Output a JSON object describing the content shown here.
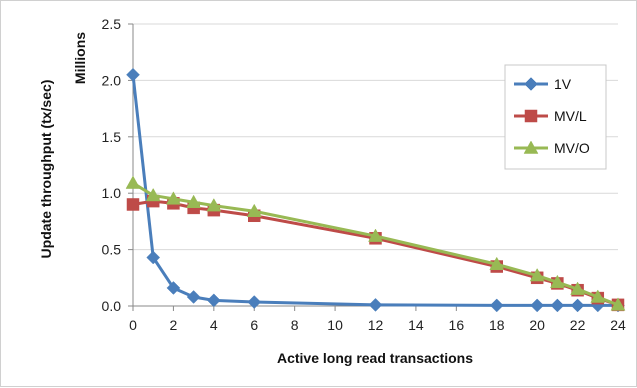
{
  "chart_data": {
    "type": "line",
    "title": "",
    "xlabel": "Active long read transactions",
    "ylabel": "Update throughput (tx/sec)",
    "yunit_label": "Millions",
    "xlim": [
      0,
      24
    ],
    "ylim": [
      0,
      2.5
    ],
    "xticks": [
      "0",
      "2",
      "4",
      "6",
      "8",
      "10",
      "12",
      "14",
      "16",
      "18",
      "20",
      "22",
      "24"
    ],
    "yticks": [
      "0.0",
      "0.5",
      "1.0",
      "1.5",
      "2.0",
      "2.5"
    ],
    "grid": "horizontal",
    "legend_position": "right",
    "series": [
      {
        "name": "1V",
        "color": "#4a7ebb",
        "marker": "diamond",
        "x": [
          0,
          1,
          2,
          3,
          4,
          6,
          12,
          18,
          20,
          21,
          22,
          23,
          24
        ],
        "y": [
          2.05,
          0.43,
          0.16,
          0.08,
          0.05,
          0.035,
          0.01,
          0.005,
          0.005,
          0.005,
          0.005,
          0.005,
          0.005
        ]
      },
      {
        "name": "MV/L",
        "color": "#be4b48",
        "marker": "square",
        "x": [
          0,
          1,
          2,
          3,
          4,
          6,
          12,
          18,
          20,
          21,
          22,
          23,
          24
        ],
        "y": [
          0.9,
          0.93,
          0.91,
          0.87,
          0.85,
          0.8,
          0.6,
          0.35,
          0.25,
          0.2,
          0.14,
          0.07,
          0.01
        ]
      },
      {
        "name": "MV/O",
        "color": "#98b954",
        "marker": "triangle",
        "x": [
          0,
          1,
          2,
          3,
          4,
          6,
          12,
          18,
          20,
          21,
          22,
          23,
          24
        ],
        "y": [
          1.09,
          0.98,
          0.95,
          0.92,
          0.89,
          0.84,
          0.62,
          0.37,
          0.27,
          0.21,
          0.15,
          0.08,
          0.01
        ]
      }
    ]
  }
}
